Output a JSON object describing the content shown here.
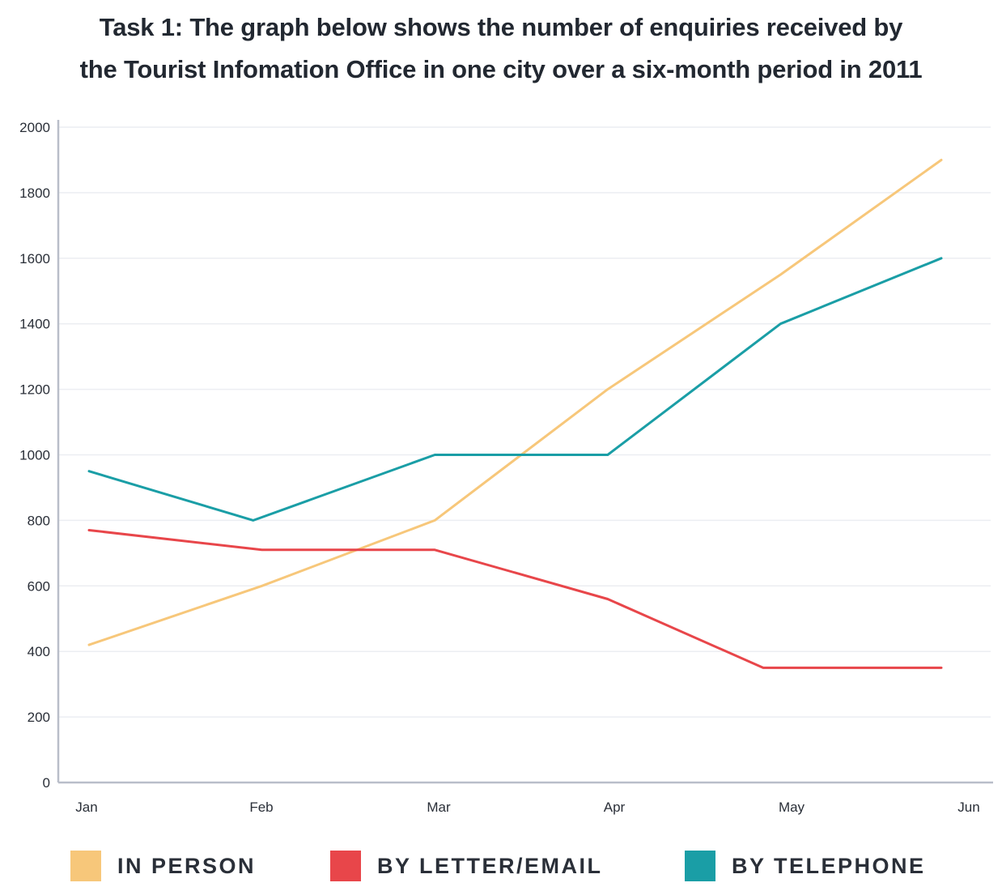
{
  "chart_data": {
    "type": "line",
    "title": "Task 1: The graph below shows the number of enquiries received by the Tourist Infomation Office in one city over a six-month period in 2011",
    "title_lines": [
      "Task 1: The graph below shows the number of enquiries received by",
      "the Tourist Infomation Office in one city over a six-month period in 2011"
    ],
    "xlabel": "",
    "ylabel": "",
    "categories": [
      "Jan",
      "Feb",
      "Mar",
      "Apr",
      "May",
      "Jun"
    ],
    "ylim": [
      0,
      2000
    ],
    "yticks": [
      0,
      200,
      400,
      600,
      800,
      1000,
      1200,
      1400,
      1600,
      1800,
      2000
    ],
    "grid": true,
    "legend_position": "bottom",
    "series": [
      {
        "name": "IN PERSON",
        "color": "#f7c77a",
        "points": [
          [
            0,
            420
          ],
          [
            1,
            600
          ],
          [
            2,
            800
          ],
          [
            3,
            1200
          ],
          [
            4,
            1550
          ],
          [
            4.93,
            1900
          ]
        ]
      },
      {
        "name": "BY LETTER/EMAIL",
        "color": "#e8464a",
        "points": [
          [
            0,
            770
          ],
          [
            1,
            710
          ],
          [
            2,
            710
          ],
          [
            3,
            560
          ],
          [
            3.9,
            350
          ],
          [
            4.93,
            350
          ]
        ]
      },
      {
        "name": "BY TELEPHONE",
        "color": "#1a9ea6",
        "points": [
          [
            0,
            950
          ],
          [
            0.95,
            800
          ],
          [
            2,
            1000
          ],
          [
            3,
            1000
          ],
          [
            4,
            1400
          ],
          [
            4.93,
            1600
          ]
        ]
      }
    ]
  }
}
